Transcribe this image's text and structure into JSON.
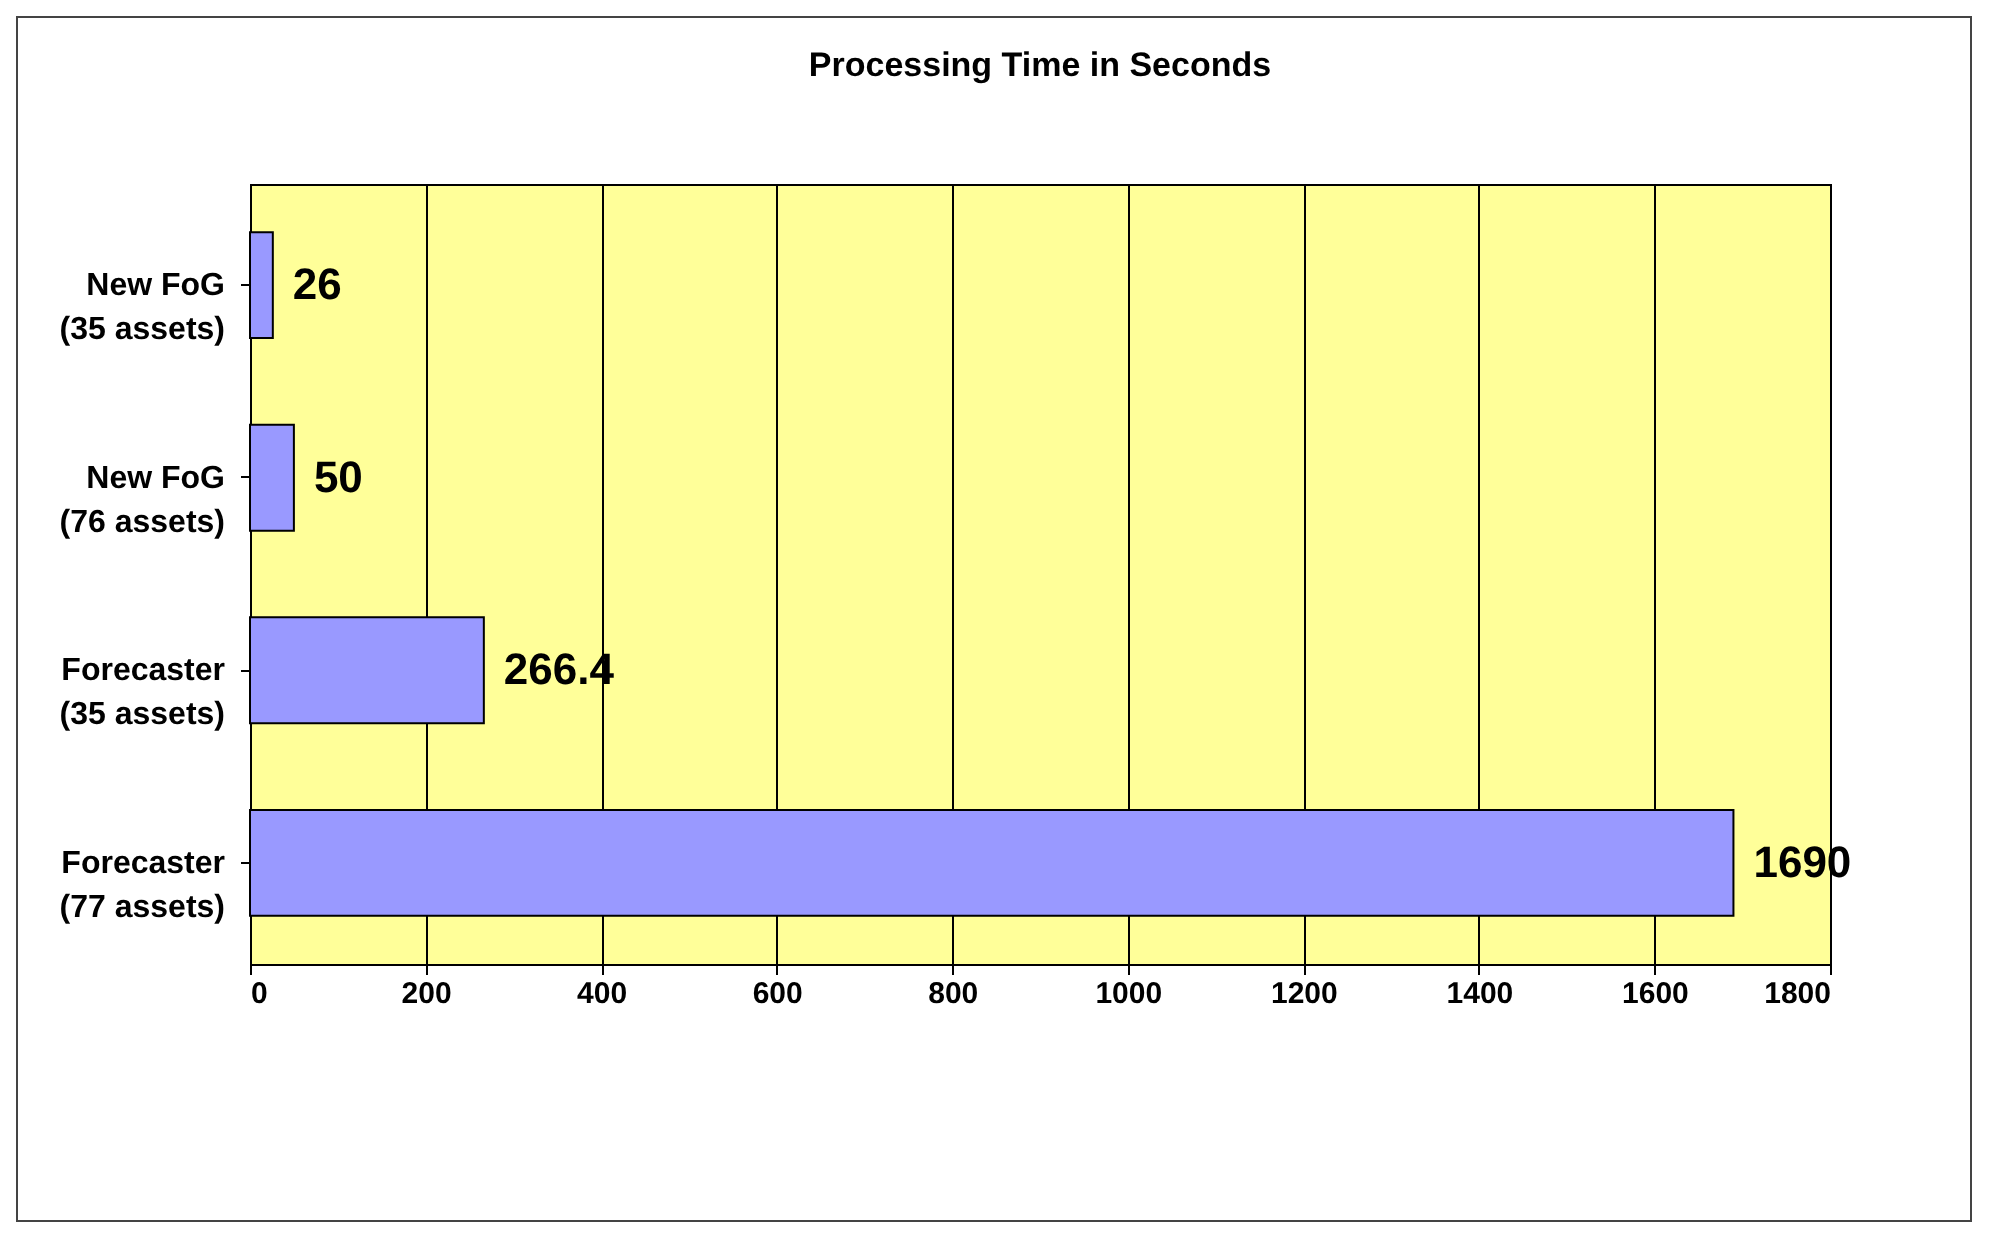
{
  "chart_data": {
    "type": "bar",
    "orientation": "horizontal",
    "title": "Processing Time in Seconds",
    "categories": [
      "New FoG\n(35 assets)",
      "New FoG\n(76 assets)",
      "Forecaster\n(35 assets)",
      "Forecaster\n(77 assets)"
    ],
    "values": [
      26,
      50,
      266.4,
      1690
    ],
    "colors": [
      "#9999ff",
      "#9999ff",
      "#9999ff",
      "#9999ff"
    ],
    "xlim": [
      0,
      1800
    ],
    "xticks": [
      0,
      200,
      400,
      600,
      800,
      1000,
      1200,
      1400,
      1600,
      1800
    ],
    "grid": "x",
    "data_labels": true
  }
}
